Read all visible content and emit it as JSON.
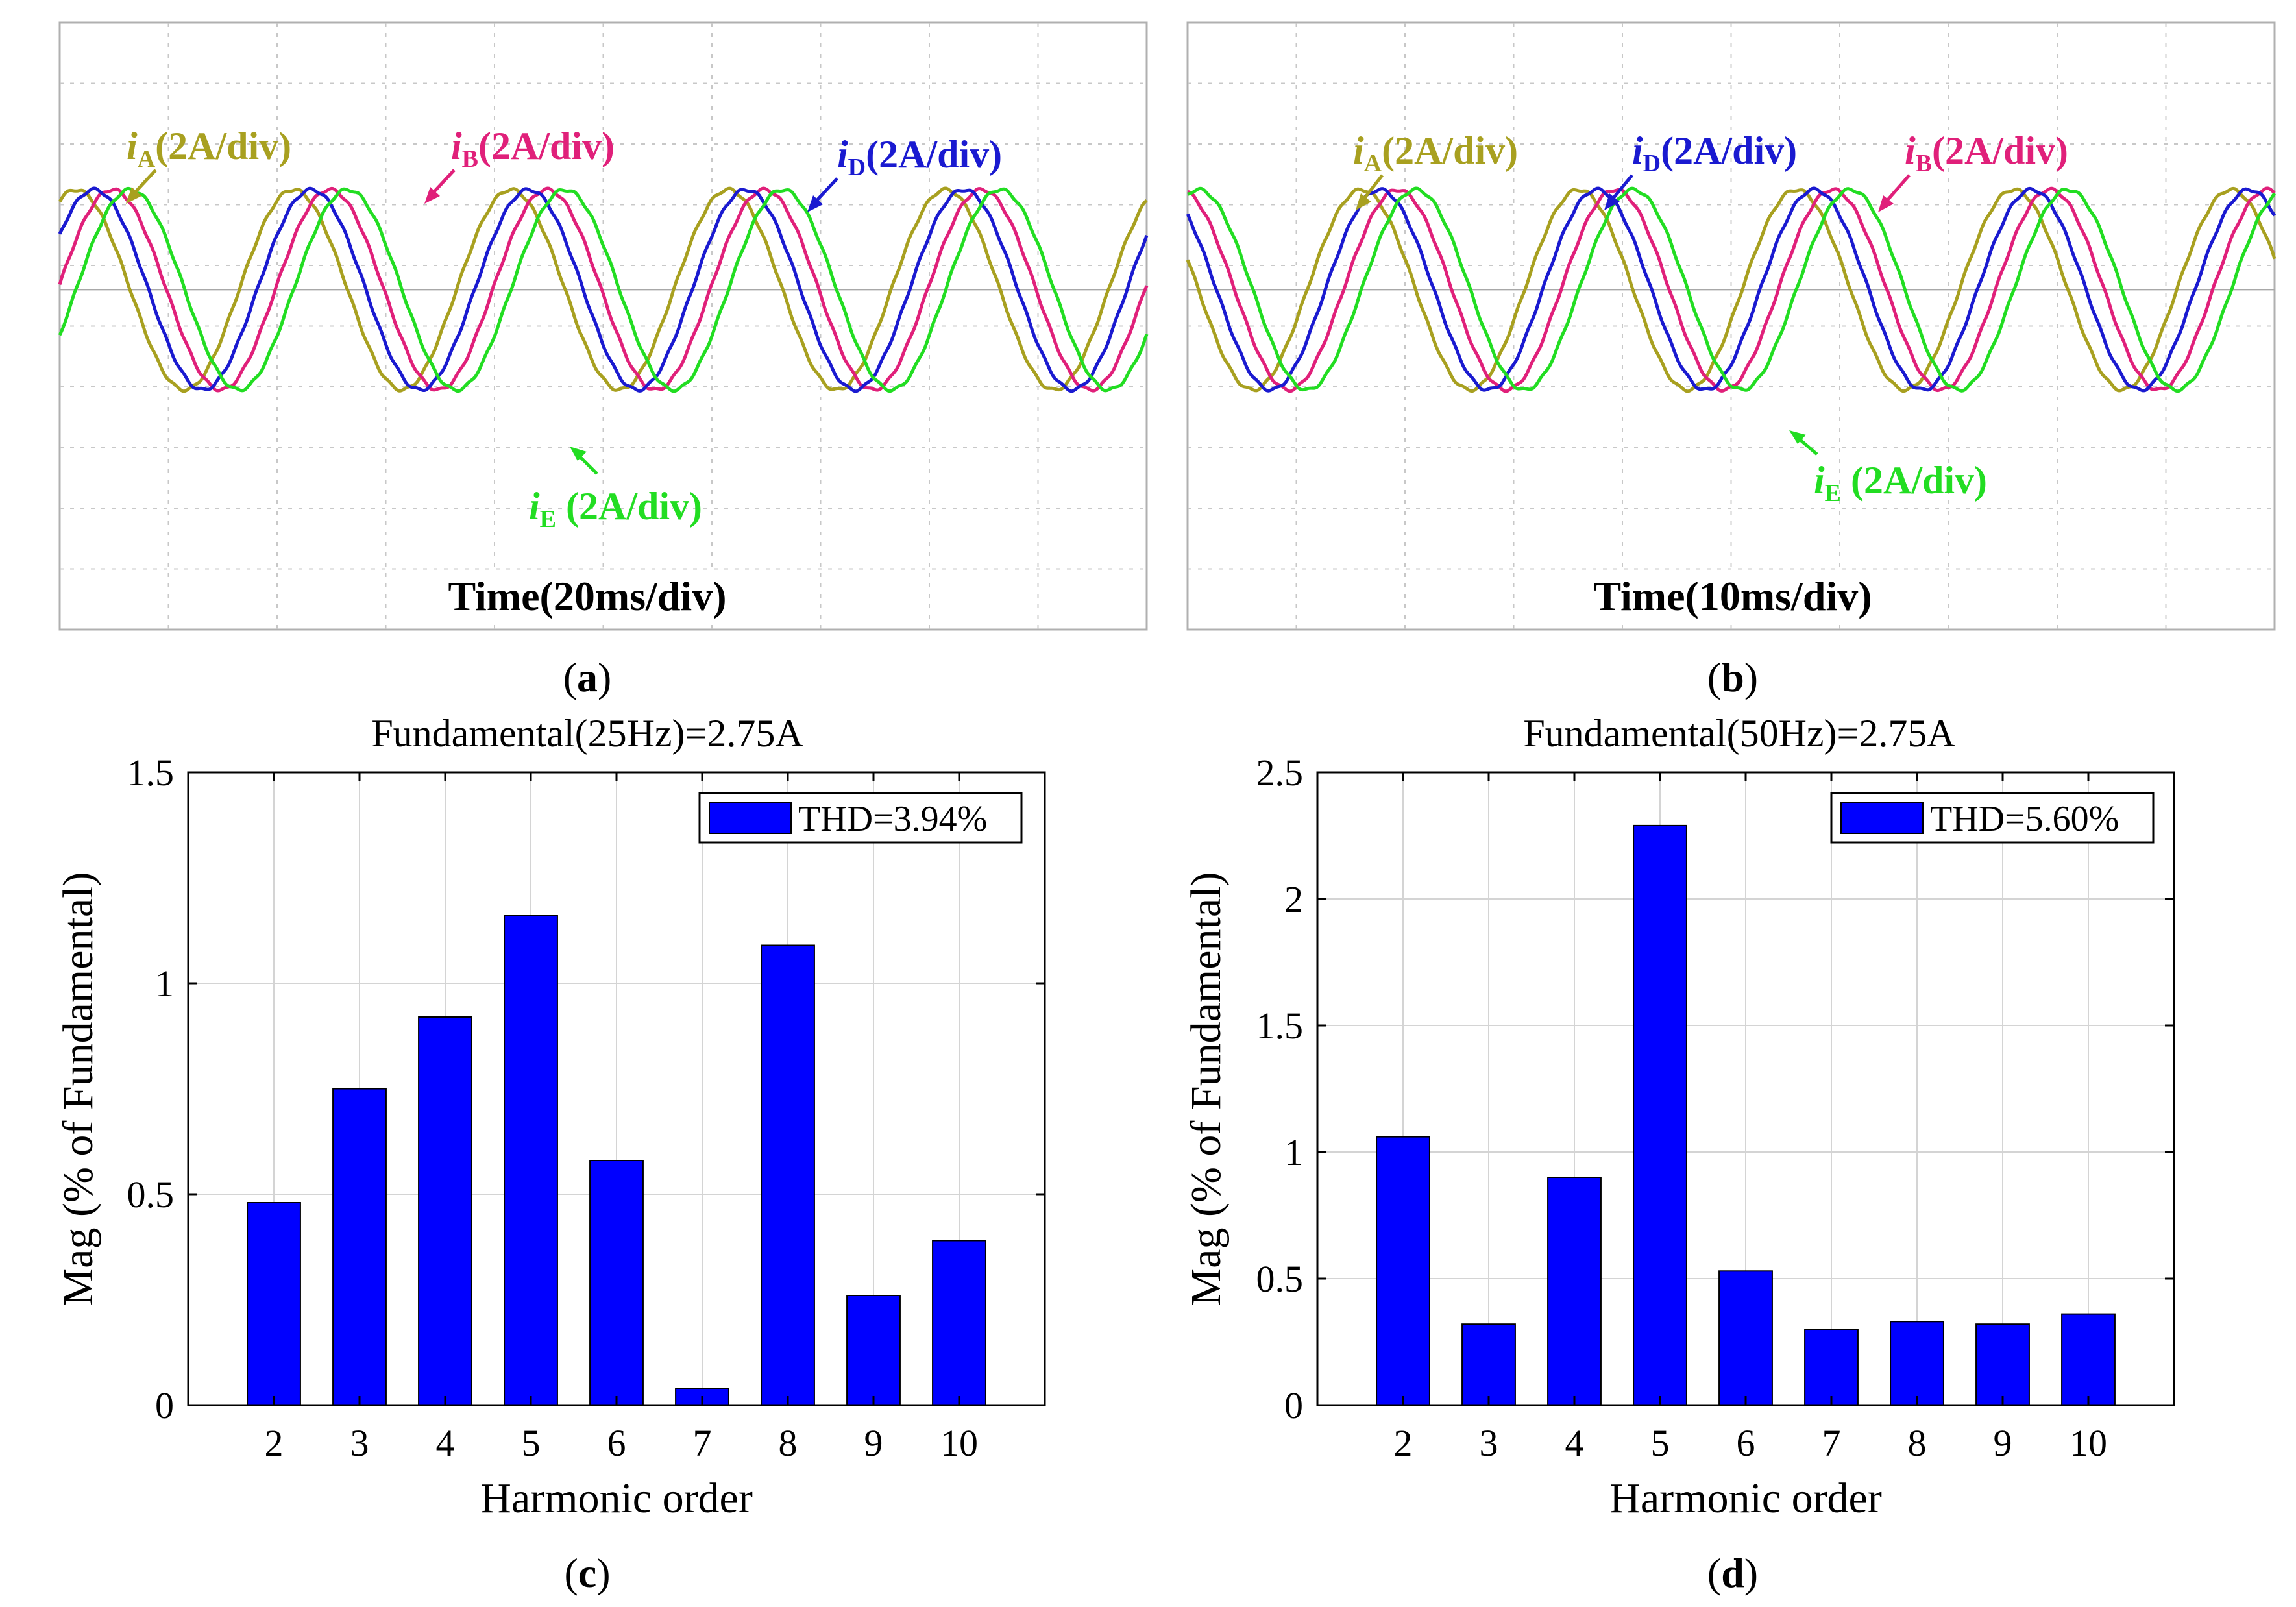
{
  "colors": {
    "iA": "#a8a020",
    "iB": "#e0207a",
    "iD": "#1a1ad0",
    "iE": "#22dd22",
    "bar": "#0000ff",
    "grid": "#d4d4d4",
    "scope_grid": "#c8c8c8"
  },
  "scopes": [
    {
      "id": "a",
      "caption_letter": "a",
      "time_label": "Time(20ms/div)",
      "cycles": 5,
      "phase_offset": 0.0,
      "labels": {
        "iA": {
          "sym": "i",
          "sub": "A",
          "rest": "(2A/div)"
        },
        "iB": {
          "sym": "i",
          "sub": "B",
          "rest": "(2A/div)"
        },
        "iD": {
          "sym": "i",
          "sub": "D",
          "rest": "(2A/div)"
        },
        "iE": {
          "sym": "i",
          "sub": "E",
          "rest": " (2A/div)"
        }
      }
    },
    {
      "id": "b",
      "caption_letter": "b",
      "time_label": "Time(10ms/div)",
      "cycles": 5,
      "phase_offset": 0.55,
      "labels": {
        "iA": {
          "sym": "i",
          "sub": "A",
          "rest": "(2A/div)"
        },
        "iB": {
          "sym": "i",
          "sub": "B",
          "rest": "(2A/div)"
        },
        "iD": {
          "sym": "i",
          "sub": "D",
          "rest": "(2A/div)"
        },
        "iE": {
          "sym": "i",
          "sub": "E",
          "rest": " (2A/div)"
        }
      }
    }
  ],
  "chart_data": [
    {
      "type": "bar",
      "panel": "c",
      "title": "Fundamental(25Hz)=2.75A",
      "xlabel": "Harmonic order",
      "ylabel": "Mag (% of Fundamental)",
      "categories": [
        "2",
        "3",
        "4",
        "5",
        "6",
        "7",
        "8",
        "9",
        "10"
      ],
      "values": [
        0.48,
        0.75,
        0.92,
        1.16,
        0.58,
        0.04,
        1.09,
        0.26,
        0.39
      ],
      "ylim": [
        0,
        1.5
      ],
      "yticks": [
        0,
        0.5,
        1,
        1.5
      ],
      "ytick_labels": [
        "0",
        "0.5",
        "1",
        "1.5"
      ],
      "legend": "THD=3.94%",
      "legend_position": "top-right",
      "grid": true
    },
    {
      "type": "bar",
      "panel": "d",
      "title": "Fundamental(50Hz)=2.75A",
      "xlabel": "Harmonic order",
      "ylabel": "Mag (% of Fundamental)",
      "categories": [
        "2",
        "3",
        "4",
        "5",
        "6",
        "7",
        "8",
        "9",
        "10"
      ],
      "values": [
        1.06,
        0.32,
        0.9,
        2.29,
        0.53,
        0.3,
        0.33,
        0.32,
        0.36
      ],
      "ylim": [
        0,
        2.5
      ],
      "yticks": [
        0,
        0.5,
        1,
        1.5,
        2,
        2.5
      ],
      "ytick_labels": [
        "0",
        "0.5",
        "1",
        "1.5",
        "2",
        "2.5"
      ],
      "legend": "THD=5.60%",
      "legend_position": "top-right",
      "grid": true
    }
  ]
}
